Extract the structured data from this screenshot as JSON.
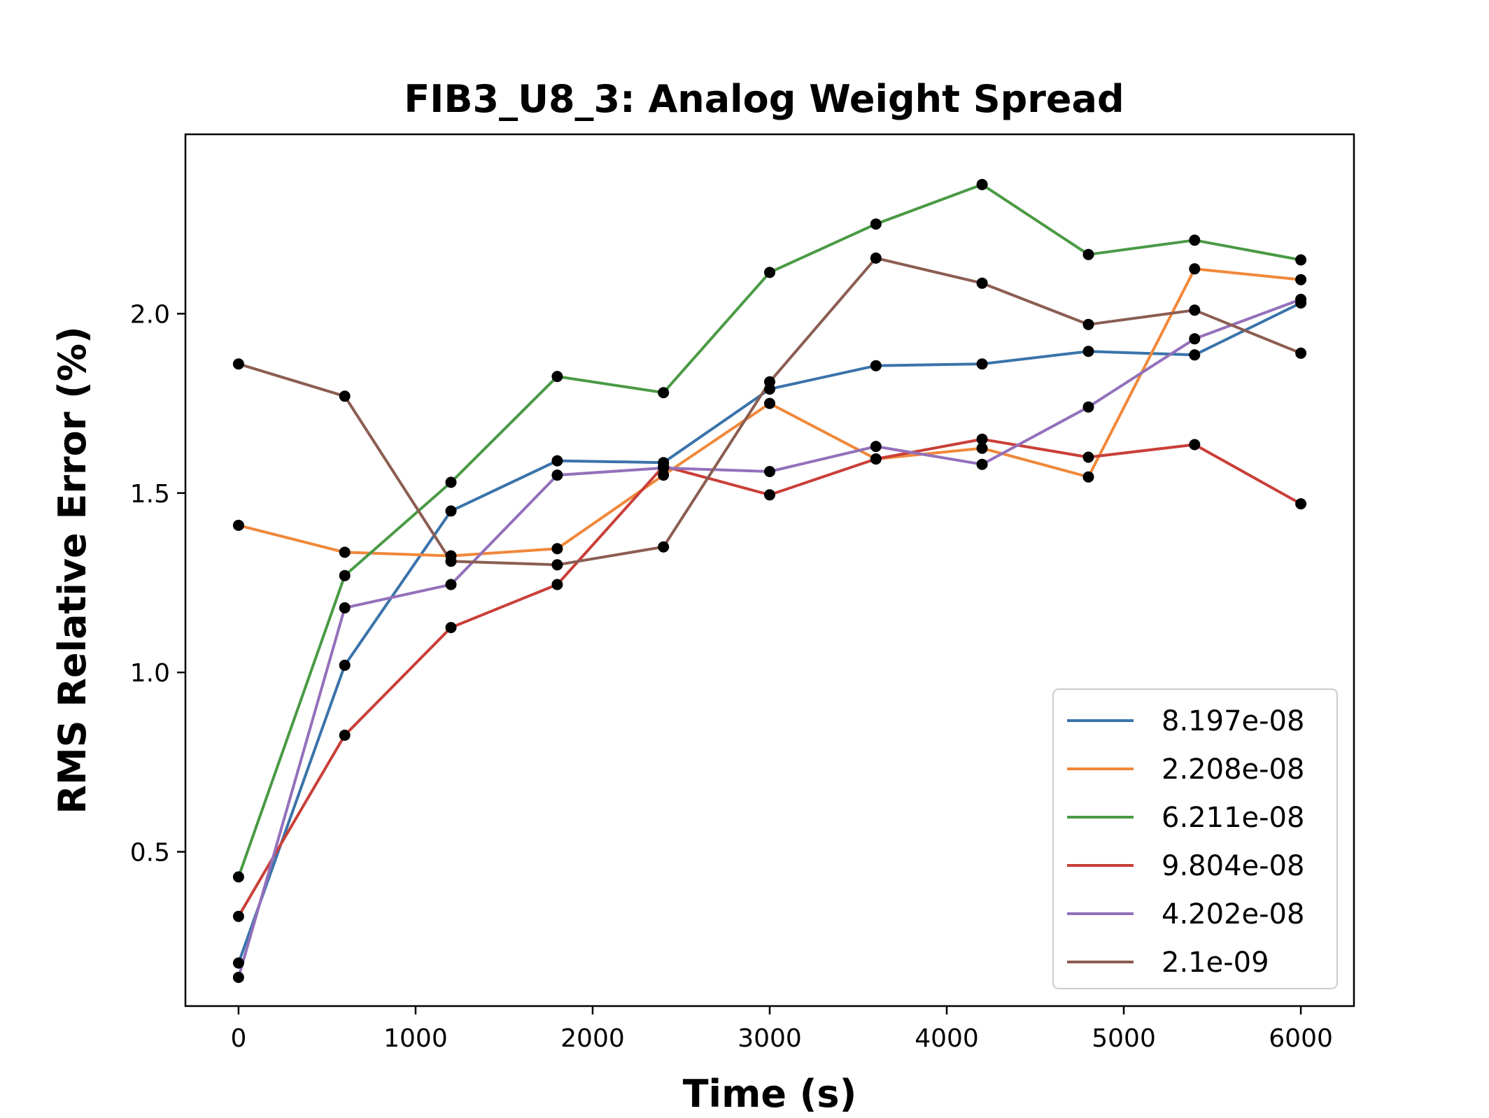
{
  "chart_data": {
    "type": "line",
    "title": "FIB3_U8_3: Analog Weight Spread",
    "xlabel": "Time (s)",
    "ylabel": "RMS Relative Error (%)",
    "xlim": [
      -300,
      6300
    ],
    "ylim": [
      0.07,
      2.5
    ],
    "xticks": [
      0,
      1000,
      2000,
      3000,
      4000,
      5000,
      6000
    ],
    "xtick_labels": [
      "0",
      "1000",
      "2000",
      "3000",
      "4000",
      "5000",
      "6000"
    ],
    "yticks": [
      0.5,
      1.0,
      1.5,
      2.0
    ],
    "ytick_labels": [
      "0.5",
      "1.0",
      "1.5",
      "2.0"
    ],
    "grid": false,
    "legend_position": "lower-right",
    "marker_color": "#000000",
    "x": [
      0,
      600,
      1200,
      1800,
      2400,
      3000,
      3600,
      4200,
      4800,
      5400,
      6000
    ],
    "series": [
      {
        "name": "8.197e-08",
        "color": "#3a73aa",
        "values": [
          0.19,
          1.02,
          1.45,
          1.59,
          1.585,
          1.79,
          1.855,
          1.86,
          1.895,
          1.885,
          2.03
        ]
      },
      {
        "name": "2.208e-08",
        "color": "#f0883a",
        "values": [
          1.41,
          1.335,
          1.325,
          1.345,
          1.55,
          1.75,
          1.595,
          1.625,
          1.545,
          2.125,
          2.095
        ]
      },
      {
        "name": "6.211e-08",
        "color": "#4a9a45",
        "values": [
          0.43,
          1.27,
          1.53,
          1.825,
          1.78,
          2.115,
          2.25,
          2.36,
          2.165,
          2.205,
          2.15
        ]
      },
      {
        "name": "9.804e-08",
        "color": "#c93f38",
        "values": [
          0.32,
          0.825,
          1.125,
          1.245,
          1.575,
          1.495,
          1.595,
          1.65,
          1.6,
          1.635,
          1.47
        ]
      },
      {
        "name": "4.202e-08",
        "color": "#9370bb",
        "values": [
          0.15,
          1.18,
          1.245,
          1.55,
          1.57,
          1.56,
          1.63,
          1.58,
          1.74,
          1.93,
          2.04
        ]
      },
      {
        "name": "2.1e-09",
        "color": "#8b5d52",
        "values": [
          1.86,
          1.77,
          1.31,
          1.3,
          1.35,
          1.81,
          2.155,
          2.085,
          1.97,
          2.01,
          1.89
        ]
      }
    ]
  }
}
